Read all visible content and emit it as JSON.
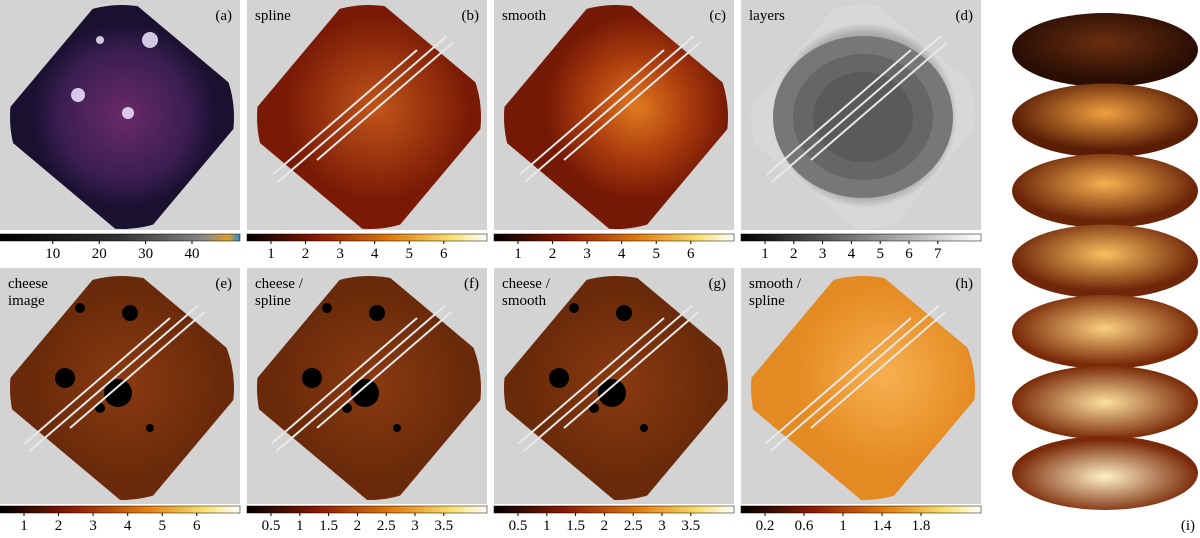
{
  "panels": [
    {
      "label": "(a)",
      "title": [],
      "ticks": [
        "10",
        "20",
        "30",
        "40"
      ]
    },
    {
      "label": "(b)",
      "title": [
        "spline"
      ],
      "ticks": [
        "1",
        "2",
        "3",
        "4",
        "5",
        "6"
      ]
    },
    {
      "label": "(c)",
      "title": [
        "smooth"
      ],
      "ticks": [
        "1",
        "2",
        "3",
        "4",
        "5",
        "6"
      ]
    },
    {
      "label": "(d)",
      "title": [
        "layers"
      ],
      "ticks": [
        "1",
        "2",
        "3",
        "4",
        "5",
        "6",
        "7"
      ]
    },
    {
      "label": "(e)",
      "title": [
        "cheese",
        "image"
      ],
      "ticks": [
        "1",
        "2",
        "3",
        "4",
        "5",
        "6"
      ]
    },
    {
      "label": "(f)",
      "title": [
        "cheese /",
        "spline"
      ],
      "ticks": [
        "0.5",
        "1",
        "1.5",
        "2",
        "2.5",
        "3",
        "3.5"
      ]
    },
    {
      "label": "(g)",
      "title": [
        "cheese /",
        "smooth"
      ],
      "ticks": [
        "0.5",
        "1",
        "1.5",
        "2",
        "2.5",
        "3",
        "3.5"
      ]
    },
    {
      "label": "(h)",
      "title": [
        "smooth /",
        "spline"
      ],
      "ticks": [
        "0.2",
        "0.6",
        "1",
        "1.4",
        "1.8"
      ]
    }
  ],
  "stack_label": "(i)"
}
